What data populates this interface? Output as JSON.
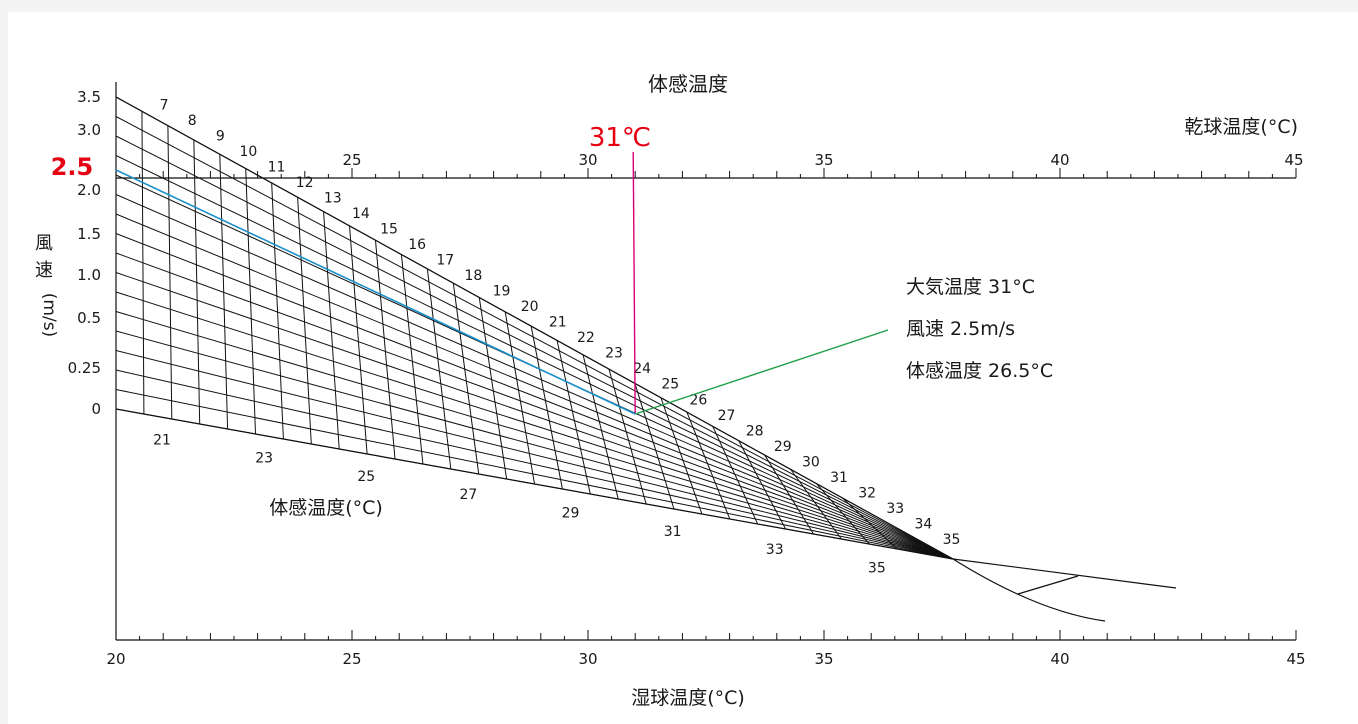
{
  "chart_data": {
    "type": "nomogram",
    "title": "体感温度",
    "top_axis_label": "乾球温度(°C)",
    "bottom_axis_label": "湿球温度(°C)",
    "left_axis_label_chars": [
      "風",
      "速",
      "(m/s)"
    ],
    "diagonal_axis_label": "体感温度(°C)",
    "temperature_range": [
      20,
      45
    ],
    "dry_bulb_ticks": [
      25,
      30,
      35,
      40,
      45
    ],
    "wet_bulb_ticks": [
      20,
      25,
      30,
      35,
      40,
      45
    ],
    "wind_speed_ticks": [
      "0",
      "0.25",
      "0.5",
      "1.0",
      "1.5",
      "2.0",
      "2.5",
      "3.0",
      "3.5"
    ],
    "upper_curve_labels": [
      7,
      8,
      9,
      10,
      11,
      12,
      13,
      14,
      15,
      16,
      17,
      18,
      19,
      20,
      21,
      22,
      23,
      24,
      25,
      26,
      27,
      28,
      29,
      30,
      31,
      32,
      33,
      34,
      35
    ],
    "lower_curve_labels": [
      21,
      23,
      25,
      27,
      29,
      31,
      33,
      35
    ],
    "example": {
      "highlight_temp_label": "31℃",
      "highlight_wind_label": "2.5",
      "dry_bulb": 31,
      "wind_speed": 2.5,
      "lines": [
        "大気温度 31°C",
        "風速 2.5m/s",
        "体感温度 26.5°C"
      ]
    }
  }
}
